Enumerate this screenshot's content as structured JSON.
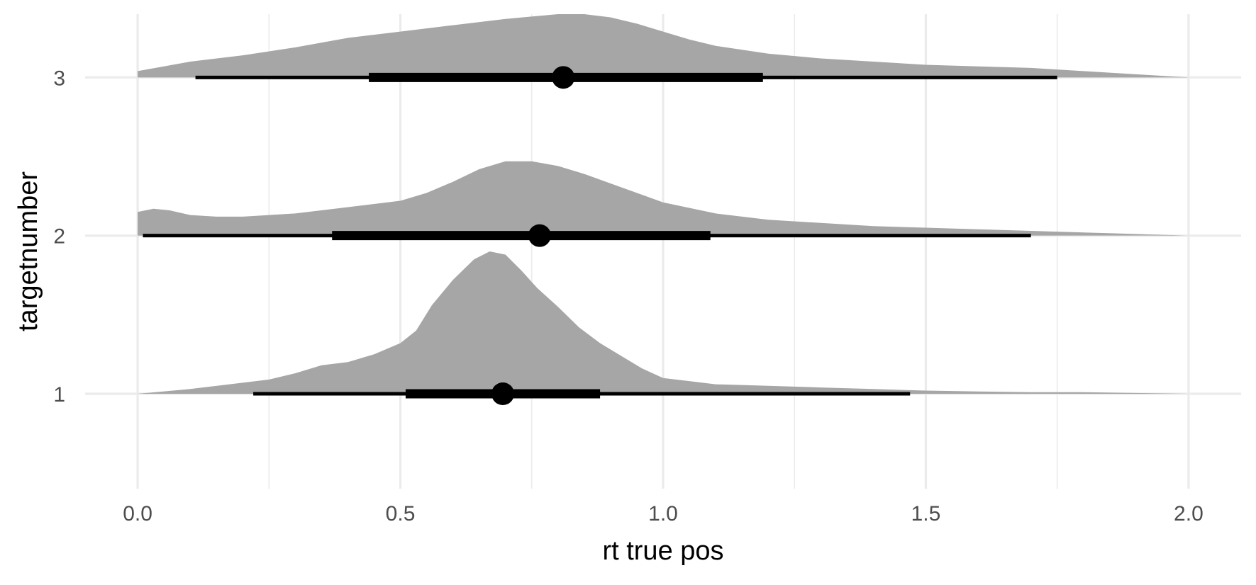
{
  "chart_data": {
    "type": "halfeye",
    "xlabel": "rt true pos",
    "ylabel": "targetnumber",
    "xlim": [
      -0.1,
      2.1
    ],
    "ylim": [
      0.4,
      3.4
    ],
    "x_ticks": [
      0.0,
      0.5,
      1.0,
      1.5,
      2.0
    ],
    "x_tick_labels": [
      "0.0",
      "0.5",
      "1.0",
      "1.5",
      "2.0"
    ],
    "x_minor_ticks": [
      0.25,
      0.75,
      1.25,
      1.75
    ],
    "categories": [
      "1",
      "2",
      "3"
    ],
    "grid": true,
    "legend": "none",
    "density_color": "#a6a6a6",
    "interval_color": "#000000",
    "series": [
      {
        "category": "1",
        "point": 0.695,
        "interval_66": [
          0.51,
          0.88
        ],
        "interval_95": [
          0.22,
          1.47
        ],
        "density_x": [
          0.0,
          0.1,
          0.2,
          0.25,
          0.3,
          0.35,
          0.4,
          0.45,
          0.5,
          0.53,
          0.56,
          0.6,
          0.64,
          0.67,
          0.7,
          0.73,
          0.76,
          0.8,
          0.84,
          0.88,
          0.92,
          0.96,
          1.0,
          1.05,
          1.1,
          1.2,
          1.3,
          1.4,
          1.5,
          1.6,
          1.7,
          1.8,
          1.9,
          2.0
        ],
        "density_y": [
          0.0,
          0.03,
          0.07,
          0.09,
          0.13,
          0.18,
          0.2,
          0.25,
          0.32,
          0.4,
          0.56,
          0.72,
          0.85,
          0.9,
          0.88,
          0.78,
          0.67,
          0.55,
          0.42,
          0.32,
          0.24,
          0.16,
          0.1,
          0.08,
          0.06,
          0.05,
          0.04,
          0.03,
          0.02,
          0.015,
          0.01,
          0.01,
          0.005,
          0.0
        ]
      },
      {
        "category": "2",
        "point": 0.765,
        "interval_66": [
          0.37,
          1.09
        ],
        "interval_95": [
          0.01,
          1.7
        ],
        "density_x": [
          0.0,
          0.03,
          0.06,
          0.1,
          0.15,
          0.2,
          0.3,
          0.4,
          0.5,
          0.55,
          0.6,
          0.65,
          0.7,
          0.75,
          0.8,
          0.85,
          0.9,
          0.95,
          1.0,
          1.1,
          1.2,
          1.3,
          1.4,
          1.5,
          1.6,
          1.7,
          1.8,
          1.9,
          2.0
        ],
        "density_y": [
          0.15,
          0.17,
          0.16,
          0.13,
          0.12,
          0.12,
          0.14,
          0.18,
          0.22,
          0.27,
          0.34,
          0.42,
          0.47,
          0.47,
          0.44,
          0.39,
          0.33,
          0.27,
          0.21,
          0.14,
          0.1,
          0.08,
          0.06,
          0.05,
          0.04,
          0.03,
          0.02,
          0.01,
          0.0
        ]
      },
      {
        "category": "3",
        "point": 0.81,
        "interval_66": [
          0.44,
          1.19
        ],
        "interval_95": [
          0.11,
          1.75
        ],
        "density_x": [
          0.0,
          0.05,
          0.1,
          0.2,
          0.3,
          0.4,
          0.5,
          0.6,
          0.7,
          0.8,
          0.85,
          0.9,
          0.95,
          1.0,
          1.05,
          1.1,
          1.2,
          1.3,
          1.4,
          1.5,
          1.6,
          1.7,
          1.8,
          1.9,
          2.0
        ],
        "density_y": [
          0.04,
          0.07,
          0.1,
          0.14,
          0.19,
          0.25,
          0.29,
          0.33,
          0.37,
          0.4,
          0.4,
          0.38,
          0.34,
          0.29,
          0.24,
          0.2,
          0.15,
          0.12,
          0.1,
          0.08,
          0.07,
          0.06,
          0.04,
          0.02,
          0.0
        ]
      }
    ]
  }
}
